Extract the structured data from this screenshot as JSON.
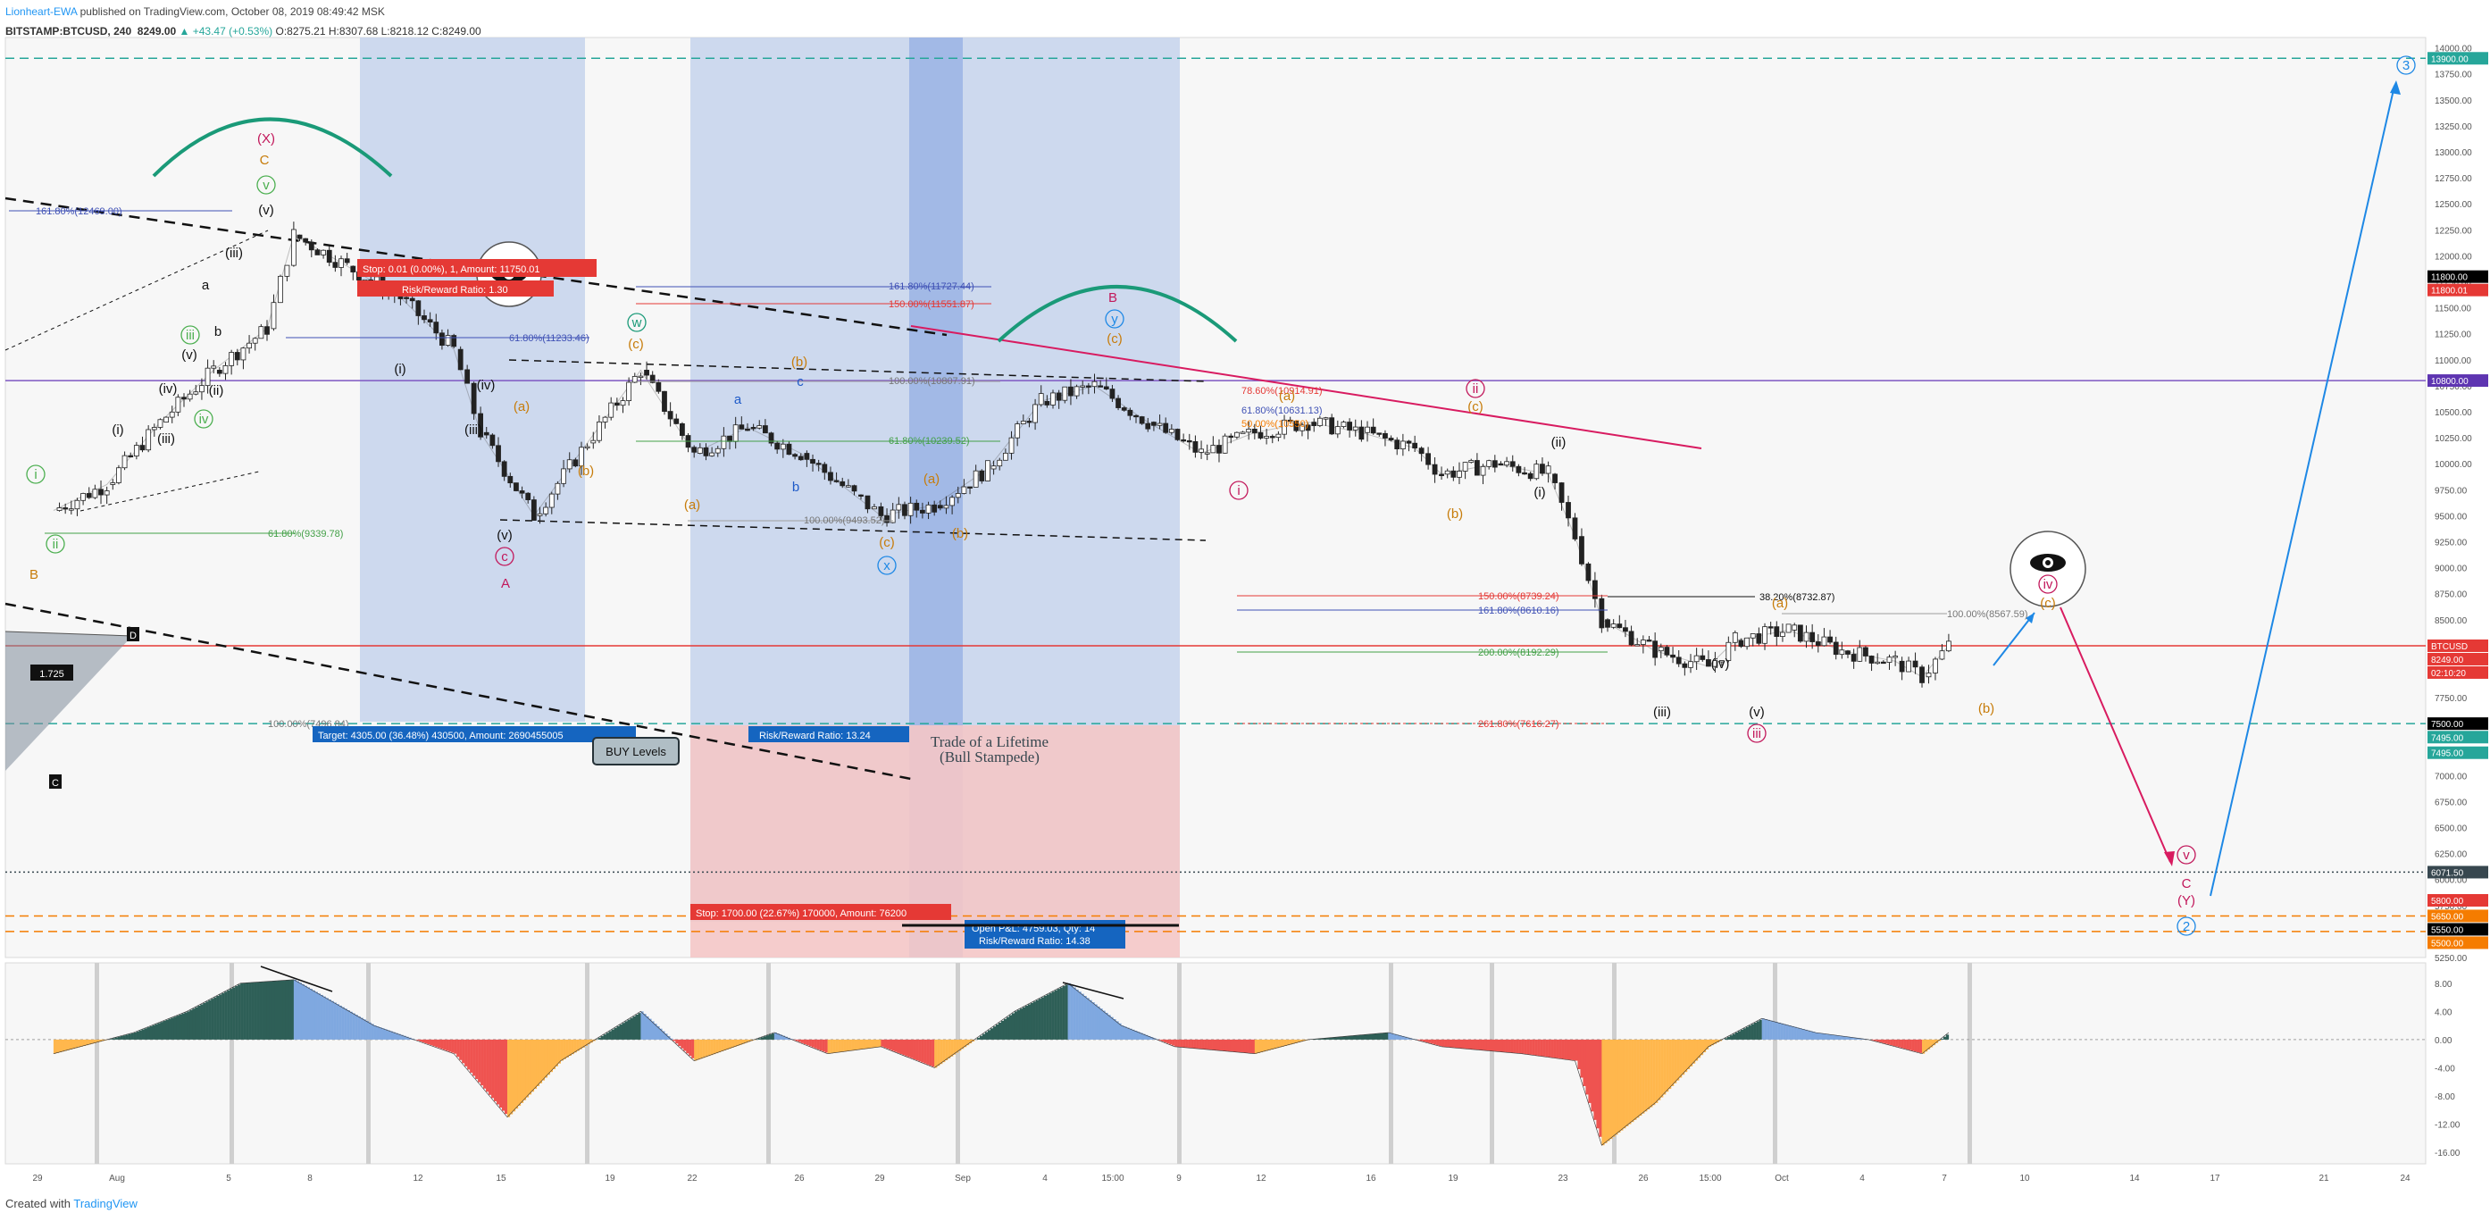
{
  "header": {
    "publisher": "Lionheart-EWA",
    "published_text": " published on TradingView.com, October 08, 2019 08:49:42 MSK",
    "symbol": "BITSTAMP:BTCUSD, 240",
    "price": "8249.00",
    "change": "▲ +43.47 (+0.53%)",
    "ohlc": "O:8275.21 H:8307.68 L:8218.12 C:8249.00"
  },
  "footer": {
    "created_with": "Created with",
    "brand": "TradingView"
  },
  "colors": {
    "blue_zone": "#c5d3ec",
    "blue_zone_dark": "#9db5e4",
    "red_zone": "#f4c7c7",
    "up": "#26a69a",
    "down": "#ef5350",
    "wave_red": "#c2185b",
    "wave_orange": "#c77c0a",
    "wave_green": "#4caf50",
    "wave_blue": "#1e88e5",
    "arc_green": "#1a9a78"
  },
  "chart_data": [
    {
      "type": "line",
      "title": "BITSTAMP:BTCUSD, 240",
      "series": [
        {
          "name": "BTCUSD",
          "x": [
            "2019-07-29",
            "2019-07-31",
            "2019-08-02",
            "2019-08-04",
            "2019-08-06",
            "2019-08-07",
            "2019-08-09",
            "2019-08-11",
            "2019-08-13",
            "2019-08-14",
            "2019-08-16",
            "2019-08-18",
            "2019-08-20",
            "2019-08-22",
            "2019-08-24",
            "2019-08-26",
            "2019-08-28",
            "2019-08-29",
            "2019-08-31",
            "2019-09-02",
            "2019-09-04",
            "2019-09-06",
            "2019-09-08",
            "2019-09-10",
            "2019-09-12",
            "2019-09-14",
            "2019-09-16",
            "2019-09-18",
            "2019-09-19",
            "2019-09-21",
            "2019-09-23",
            "2019-09-24",
            "2019-09-25",
            "2019-09-27",
            "2019-09-29",
            "2019-09-30",
            "2019-10-02",
            "2019-10-04",
            "2019-10-06",
            "2019-10-07",
            "2019-10-08"
          ],
          "values": [
            9550,
            9800,
            10400,
            10900,
            11300,
            12200,
            11900,
            11600,
            11100,
            10300,
            9500,
            10200,
            10900,
            10100,
            10350,
            10100,
            9700,
            9500,
            9600,
            9950,
            10600,
            10750,
            10400,
            10100,
            10300,
            10400,
            10300,
            10150,
            9900,
            10000,
            9900,
            9300,
            8500,
            8200,
            8050,
            8300,
            8400,
            8200,
            8100,
            7950,
            8249
          ]
        }
      ],
      "xlabel": "",
      "ylabel": "",
      "x_tick_labels": [
        "29",
        "Aug",
        "5",
        "8",
        "12",
        "15",
        "19",
        "22",
        "26",
        "29",
        "Sep",
        "4",
        "15:00",
        "9",
        "12",
        "16",
        "19",
        "23",
        "26",
        "15:00",
        "Oct",
        "4",
        "7",
        "10",
        "14",
        "17",
        "21",
        "24"
      ],
      "y_tick_labels": [
        "14000.00",
        "13750.00",
        "13500.00",
        "13250.00",
        "13000.00",
        "12750.00",
        "12500.00",
        "12250.00",
        "12000.00",
        "11750.00",
        "11500.00",
        "11250.00",
        "11000.00",
        "10750.00",
        "10500.00",
        "10250.00",
        "10000.00",
        "9750.00",
        "9500.00",
        "9250.00",
        "9000.00",
        "8750.00",
        "8500.00",
        "8250.00",
        "8000.00",
        "7750.00",
        "7500.00",
        "7250.00",
        "7000.00",
        "6750.00",
        "6500.00",
        "6250.00",
        "6000.00",
        "5750.00",
        "5500.00",
        "5250.00"
      ],
      "ylim": [
        5250,
        14100
      ],
      "price_tags": [
        {
          "label": "13900.00",
          "price": 13900,
          "color": "#26a69a"
        },
        {
          "label": "11800.00",
          "price": 11800,
          "color": "#000000"
        },
        {
          "label": "11800.01",
          "price": 11760,
          "color": "#e53935"
        },
        {
          "label": "10800.00",
          "price": 10800,
          "color": "#5e35b1"
        },
        {
          "label": "BTCUSD",
          "price": 8249,
          "color": "#e53935"
        },
        {
          "label": "8249.00",
          "price": 8249,
          "color": "#e53935"
        },
        {
          "label": "02:10:20",
          "price": 8140,
          "color": "#e53935"
        },
        {
          "label": "7500.00",
          "price": 7500,
          "color": "#000000"
        },
        {
          "label": "7495.00",
          "price": 7370,
          "color": "#26a69a"
        },
        {
          "label": "7495.00",
          "price": 7220,
          "color": "#26a69a"
        },
        {
          "label": "6071.50",
          "price": 6071,
          "color": "#37474f"
        },
        {
          "label": "5800.00",
          "price": 5800,
          "color": "#e53935"
        },
        {
          "label": "5650.00",
          "price": 5650,
          "color": "#f57c00"
        },
        {
          "label": "5550.00",
          "price": 5530,
          "color": "#000000"
        },
        {
          "label": "5500.00",
          "price": 5400,
          "color": "#f57c00"
        }
      ],
      "horizontal_lines": [
        {
          "price": 13900,
          "style": "dashed",
          "color": "#26a69a"
        },
        {
          "price": 10800,
          "style": "solid",
          "color": "#7e57c2"
        },
        {
          "price": 8249,
          "style": "solid",
          "color": "#e53935"
        },
        {
          "price": 7500,
          "style": "dashed",
          "color": "#26a69a"
        },
        {
          "price": 6071.5,
          "style": "dotted",
          "color": "#37474f"
        },
        {
          "price": 5650,
          "style": "dashed",
          "color": "#f57c00"
        },
        {
          "price": 5500,
          "style": "dashed",
          "color": "#f57c00"
        }
      ],
      "fib_labels": [
        "161.80%(12469.00)",
        "161.80%(11727.44)",
        "150.00%(11551.87)",
        "61.80%(11233.46)",
        "100.00%(10807.91)",
        "61.80%(10239.52)",
        "61.80%(9339.78)",
        "100.00%(9493.52)",
        "78.60%(10914.91)",
        "61.80%(10631.13)",
        "50.00%(10550)",
        "150.00%(8739.24)",
        "38.20%(8732.87)",
        "161.80%(8610.16)",
        "100.00%(8567.59)",
        "200.00%(8192.29)",
        "261.80%(7616.27)",
        "100.00%(7496.84)"
      ],
      "position_labels": [
        "Stop: 0.01 (0.00%), 1, Amount: 11750.01",
        "Risk/Reward Ratio: 1.30",
        "Target: 4305.00 (36.48%) 430500, Amount: 2690455005",
        "Risk/Reward Ratio: 13.24",
        "Stop: 1700.00 (22.67%) 170000, Amount: 76200",
        "Open P&L: 4759.03, Qty: 14",
        "Risk/Reward Ratio: 14.38"
      ],
      "callouts": [
        "BUY Levels",
        "Trade of a Lifetime",
        "(Bull Stampede)"
      ],
      "pattern_labels": [
        "1.725",
        "D",
        "C"
      ],
      "wave_labels": [
        "(X)",
        "C",
        "v",
        "(v)",
        "(iii)",
        "iii",
        "iv",
        "(v)",
        "(iv)",
        "(ii)",
        "(iii)",
        "(i)",
        "i",
        "ii",
        "B",
        "b",
        "a",
        "(i)",
        "(iv)",
        "(iii)",
        "(v)",
        "c",
        "A",
        "(a)",
        "(b)",
        "(c)",
        "w",
        "(a)",
        "(b)",
        "b",
        "a",
        "c",
        "(a)",
        "(b)",
        "(c)",
        "x",
        "B",
        "y",
        "(c)",
        "(a)",
        "(b)",
        "ii",
        "(c)",
        "(ii)",
        "i",
        "(i)",
        "(iv)",
        "(iii)",
        "(v)",
        "iii",
        "(a)",
        "(b)",
        "(c)",
        "iv",
        "v",
        "C",
        "(Y)",
        "2",
        "3"
      ]
    },
    {
      "type": "area",
      "title": "",
      "series": [
        {
          "name": "",
          "x": [
            "2019-07-29",
            "2019-08-01",
            "2019-08-03",
            "2019-08-05",
            "2019-08-07",
            "2019-08-10",
            "2019-08-13",
            "2019-08-15",
            "2019-08-17",
            "2019-08-20",
            "2019-08-22",
            "2019-08-25",
            "2019-08-27",
            "2019-08-29",
            "2019-08-31",
            "2019-09-03",
            "2019-09-05",
            "2019-09-07",
            "2019-09-09",
            "2019-09-12",
            "2019-09-14",
            "2019-09-17",
            "2019-09-19",
            "2019-09-22",
            "2019-09-24",
            "2019-09-25",
            "2019-09-27",
            "2019-09-29",
            "2019-10-01",
            "2019-10-03",
            "2019-10-05",
            "2019-10-07",
            "2019-10-08"
          ],
          "values": [
            -2,
            1,
            4,
            8,
            8.5,
            2,
            -2,
            -11,
            -3,
            4,
            -3,
            1,
            -2,
            -1,
            -4,
            4,
            8,
            2,
            -1,
            -2,
            0,
            1,
            -1,
            -2,
            -3,
            -15,
            -9,
            -1,
            3,
            1,
            0,
            -2,
            1
          ]
        }
      ],
      "ylim": [
        -17,
        10
      ],
      "y_tick_labels": [
        "8.00",
        "4.00",
        "0.00",
        "-4.00",
        "-8.00",
        "-12.00",
        "-16.00"
      ]
    }
  ]
}
